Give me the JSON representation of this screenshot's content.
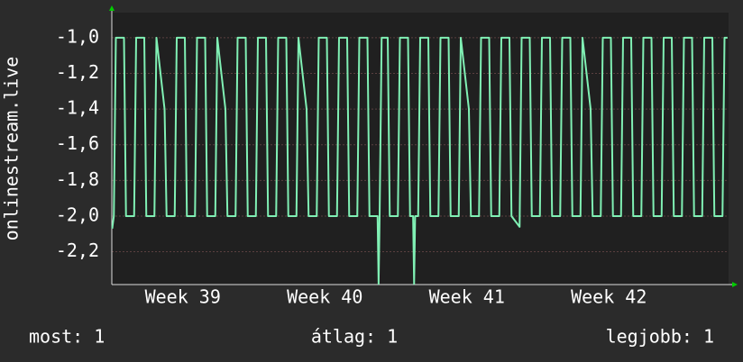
{
  "chart_data": {
    "type": "line",
    "ylabel": "onlinestream.live",
    "x": [
      0.02,
      0.1,
      0.2,
      0.6,
      0.7,
      1.1,
      1.2,
      1.6,
      1.7,
      2.1,
      2.2,
      2.6,
      2.7,
      3.1,
      3.2,
      3.6,
      3.7,
      4.1,
      4.2,
      4.6,
      4.7,
      5.1,
      5.2,
      5.6,
      5.7,
      6.1,
      6.2,
      6.6,
      6.7,
      7.1,
      7.2,
      7.6,
      7.7,
      8.1,
      8.2,
      8.6,
      8.7,
      9.1,
      9.2,
      9.6,
      9.7,
      10.1,
      10.2,
      10.6,
      10.7,
      11.1,
      11.2,
      11.6,
      11.7,
      12.1,
      12.2,
      12.6,
      12.7,
      13.1,
      13.15,
      13.2,
      13.3,
      13.6,
      13.7,
      14.1,
      14.2,
      14.6,
      14.7,
      14.85,
      14.9,
      14.95,
      15.1,
      15.2,
      15.6,
      15.7,
      16.1,
      16.2,
      16.6,
      16.7,
      17.1,
      17.2,
      17.6,
      17.7,
      18.1,
      18.2,
      18.6,
      18.7,
      19.1,
      19.2,
      19.6,
      19.7,
      20.1,
      20.2,
      20.6,
      20.7,
      21.1,
      21.2,
      21.6,
      21.7,
      22.1,
      22.2,
      22.6,
      22.7,
      23.1,
      23.2,
      23.6,
      23.7,
      24.1,
      24.2,
      24.6,
      24.7,
      25.1,
      25.2,
      25.6,
      25.7,
      26.1,
      26.2,
      26.6,
      26.7,
      27.1,
      27.2,
      27.6,
      27.7,
      28.1,
      28.2,
      28.6,
      28.7,
      29.1,
      29.2,
      29.6,
      29.7,
      30.1,
      30.2,
      30.35
    ],
    "values": [
      -2.07,
      -2,
      -1,
      -1,
      -2,
      -2,
      -1,
      -1,
      -2,
      -2,
      -1,
      -1.4,
      -2,
      -2,
      -1,
      -1,
      -2,
      -2,
      -1,
      -1,
      -2,
      -2,
      -1,
      -1.4,
      -2,
      -2,
      -1,
      -1,
      -2,
      -2,
      -1,
      -1,
      -2,
      -2,
      -1,
      -1,
      -2,
      -2,
      -1,
      -1.4,
      -2,
      -2,
      -1,
      -1,
      -2,
      -2,
      -1,
      -1,
      -2,
      -2,
      -1,
      -1,
      -2,
      -2,
      -2.38,
      -2,
      -1,
      -1,
      -2,
      -2,
      -1,
      -1,
      -2,
      -2,
      -2.38,
      -2,
      -2,
      -1,
      -1,
      -2,
      -2,
      -1,
      -1,
      -2,
      -2,
      -1,
      -1.4,
      -2,
      -2,
      -1,
      -1,
      -2,
      -2,
      -1,
      -1,
      -2,
      -2.06,
      -1,
      -1,
      -2,
      -2,
      -1,
      -1,
      -2,
      -2,
      -1,
      -1,
      -2,
      -2,
      -1,
      -1.4,
      -2,
      -2,
      -1,
      -1,
      -2,
      -2,
      -1,
      -1,
      -2,
      -2,
      -1,
      -1,
      -2,
      -2,
      -1,
      -1,
      -2,
      -2,
      -1,
      -1,
      -2,
      -2,
      -1,
      -1,
      -2,
      -2,
      -1,
      -1
    ],
    "color": "#80f0b4",
    "xlim": [
      0,
      30.4
    ],
    "xticks": [
      {
        "value": 3.5,
        "label": "Week 39"
      },
      {
        "value": 10.5,
        "label": "Week 40"
      },
      {
        "value": 17.5,
        "label": "Week 41"
      },
      {
        "value": 24.5,
        "label": "Week 42"
      }
    ],
    "ylim": [
      -2.384,
      -0.859
    ],
    "yticks": [
      {
        "value": -1.0,
        "label": "-1,0"
      },
      {
        "value": -1.2,
        "label": "-1,2"
      },
      {
        "value": -1.4,
        "label": "-1,4"
      },
      {
        "value": -1.6,
        "label": "-1,6"
      },
      {
        "value": -1.8,
        "label": "-1,8"
      },
      {
        "value": -2.0,
        "label": "-2,0"
      },
      {
        "value": -2.2,
        "label": "-2,2"
      }
    ],
    "grid": true,
    "footer": [
      "most: 1",
      "átlag: 1",
      "legjobb: 1"
    ]
  }
}
